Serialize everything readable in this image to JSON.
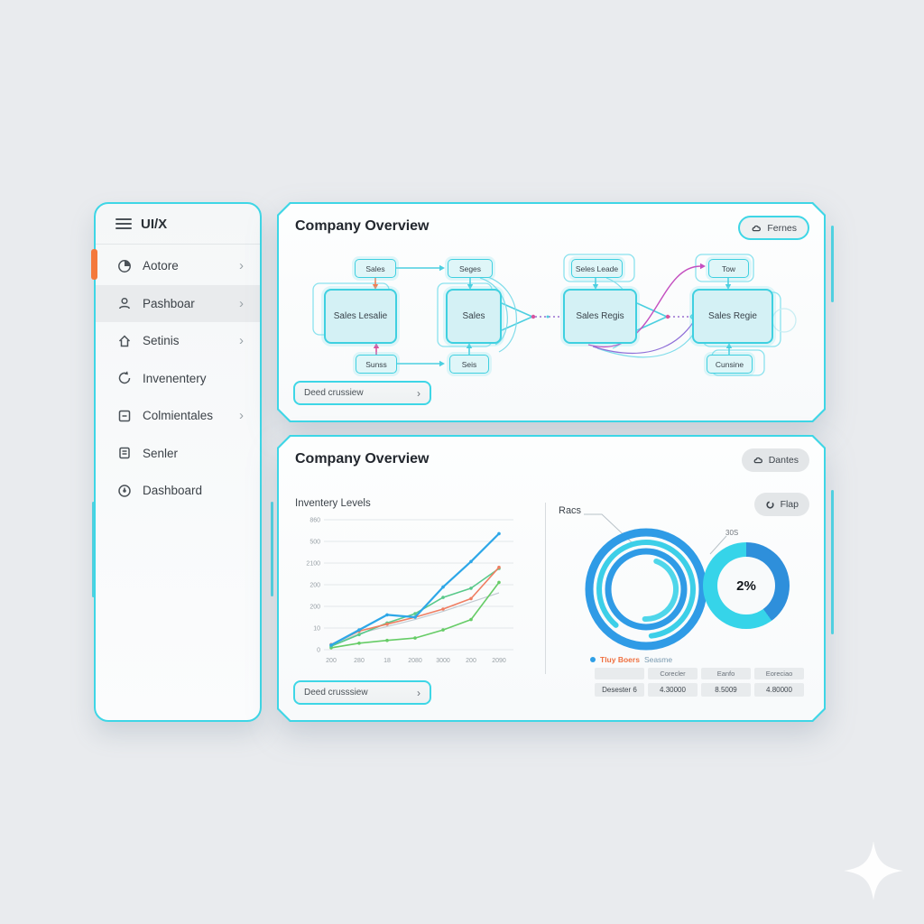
{
  "app": {
    "background": "#e9ebee",
    "accent_cyan": "#3ed6e6",
    "accent_orange": "#f4793b"
  },
  "sidebar": {
    "title": "UI/X",
    "items": [
      {
        "label": "Aotore",
        "icon": "pie-icon",
        "chevron": true,
        "orange_marker": true,
        "highlighted": false
      },
      {
        "label": "Pashboar",
        "icon": "user-icon",
        "chevron": true,
        "orange_marker": false,
        "highlighted": true
      },
      {
        "label": "Setinis",
        "icon": "home-icon",
        "chevron": true,
        "orange_marker": false,
        "highlighted": false
      },
      {
        "label": "Invenentery",
        "icon": "refresh-icon",
        "chevron": false,
        "orange_marker": false,
        "highlighted": false
      },
      {
        "label": "Colmientales",
        "icon": "minus-square-icon",
        "chevron": true,
        "orange_marker": false,
        "highlighted": false
      },
      {
        "label": "Senler",
        "icon": "document-icon",
        "chevron": false,
        "orange_marker": false,
        "highlighted": false
      },
      {
        "label": "Dashboard",
        "icon": "clock-icon",
        "chevron": false,
        "orange_marker": false,
        "highlighted": false
      }
    ]
  },
  "top_panel": {
    "title": "Company Overview",
    "action_button": "Fernes",
    "cta_button": "Deed crussiew",
    "flow": {
      "top_nodes": [
        "Sales",
        "Seges",
        "Seles Leade",
        "Tow"
      ],
      "main_nodes": [
        "Sales Lesalie",
        "Sales",
        "Sales Regis",
        "Sales Regie"
      ],
      "bottom_nodes": [
        "Sunss",
        "Seis",
        "Cunsine"
      ]
    }
  },
  "bottom_panel": {
    "title": "Company Overview",
    "action_button": "Dantes",
    "flap_button": "Flap",
    "cta_button": "Deed crusssiew",
    "chart_label": "Inventery Levels",
    "rings_label": "Racs",
    "donut_callout": "30S",
    "donut_center": "2%",
    "legend": {
      "dot_color": "#2f9fe6",
      "text_orange": "Tluy Boers",
      "text_blue": "Seasme"
    },
    "table": {
      "headers": [
        "",
        "Corecler",
        "Eanfo",
        "Eoreciao"
      ],
      "rows": [
        [
          "Desester 6",
          "4.30000",
          "8.5009",
          "4.80000"
        ]
      ]
    }
  },
  "chart_data": [
    {
      "type": "line",
      "title": "Inventery Levels",
      "x_tick_labels": [
        "200",
        "280",
        "18",
        "2080",
        "3000",
        "200",
        "2090"
      ],
      "y_tick_labels_bottom_to_top": [
        "0",
        "10",
        "200",
        "200",
        "2100",
        "500",
        "860"
      ],
      "ylim": [
        0,
        560
      ],
      "grid": true,
      "note": "axis labels are decorative/garbled in source image; series values are plotted-position estimates on a 0-560 scale",
      "series": [
        {
          "name": "blue",
          "color": "#2da7e8",
          "width": 2.2,
          "values": [
            20,
            85,
            150,
            140,
            270,
            380,
            500
          ]
        },
        {
          "name": "orange",
          "color": "#ef7e62",
          "width": 1.6,
          "values": [
            22,
            80,
            110,
            140,
            175,
            220,
            355
          ]
        },
        {
          "name": "green",
          "color": "#58c98a",
          "width": 1.6,
          "values": [
            15,
            65,
            115,
            155,
            225,
            265,
            350
          ]
        },
        {
          "name": "light-green",
          "color": "#66cc66",
          "width": 1.6,
          "values": [
            8,
            28,
            40,
            50,
            85,
            130,
            290
          ]
        },
        {
          "name": "gray",
          "color": "#c3ccd3",
          "width": 1.2,
          "values": [
            20,
            70,
            100,
            130,
            165,
            205,
            245
          ]
        }
      ]
    },
    {
      "type": "concentric-rings",
      "label": "Racs",
      "rings": [
        {
          "color": "#2f9be6",
          "radius": 63,
          "width": 9,
          "coverage": 100
        },
        {
          "color": "#3ccfe8",
          "radius": 52,
          "width": 6,
          "coverage": 87
        },
        {
          "color": "#2f9be6",
          "radius": 42,
          "width": 7,
          "coverage": 100
        },
        {
          "color": "#4fd6ea",
          "radius": 33,
          "width": 6,
          "coverage": 45
        }
      ]
    },
    {
      "type": "donut",
      "center_label": "2%",
      "callout_label": "30S",
      "slices": [
        {
          "name": "blue",
          "color": "#2e8fdb",
          "percent": 40
        },
        {
          "name": "cyan",
          "color": "#36d4e9",
          "percent": 60
        }
      ]
    }
  ]
}
